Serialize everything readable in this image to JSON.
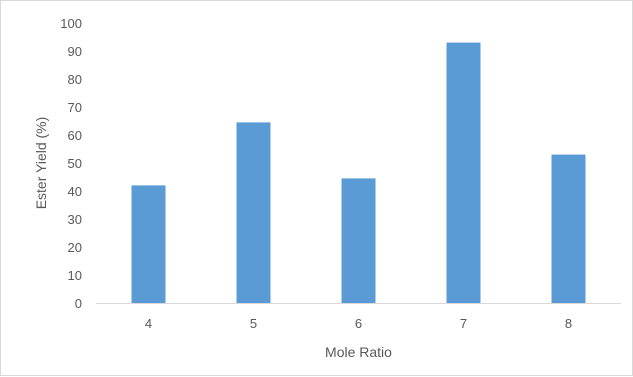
{
  "chart_data": {
    "type": "bar",
    "title": "",
    "xlabel": "Mole Ratio",
    "ylabel": "Ester Yield (%)",
    "categories": [
      "4",
      "5",
      "6",
      "7",
      "8"
    ],
    "values": [
      42,
      64.5,
      44.5,
      93,
      53
    ],
    "ylim": [
      0,
      100
    ],
    "ytick_step": 10,
    "grid": false,
    "legend": "none",
    "bar_color": "#5b9bd5",
    "axis_color": "#d9d9d9",
    "text_color": "#595959"
  }
}
